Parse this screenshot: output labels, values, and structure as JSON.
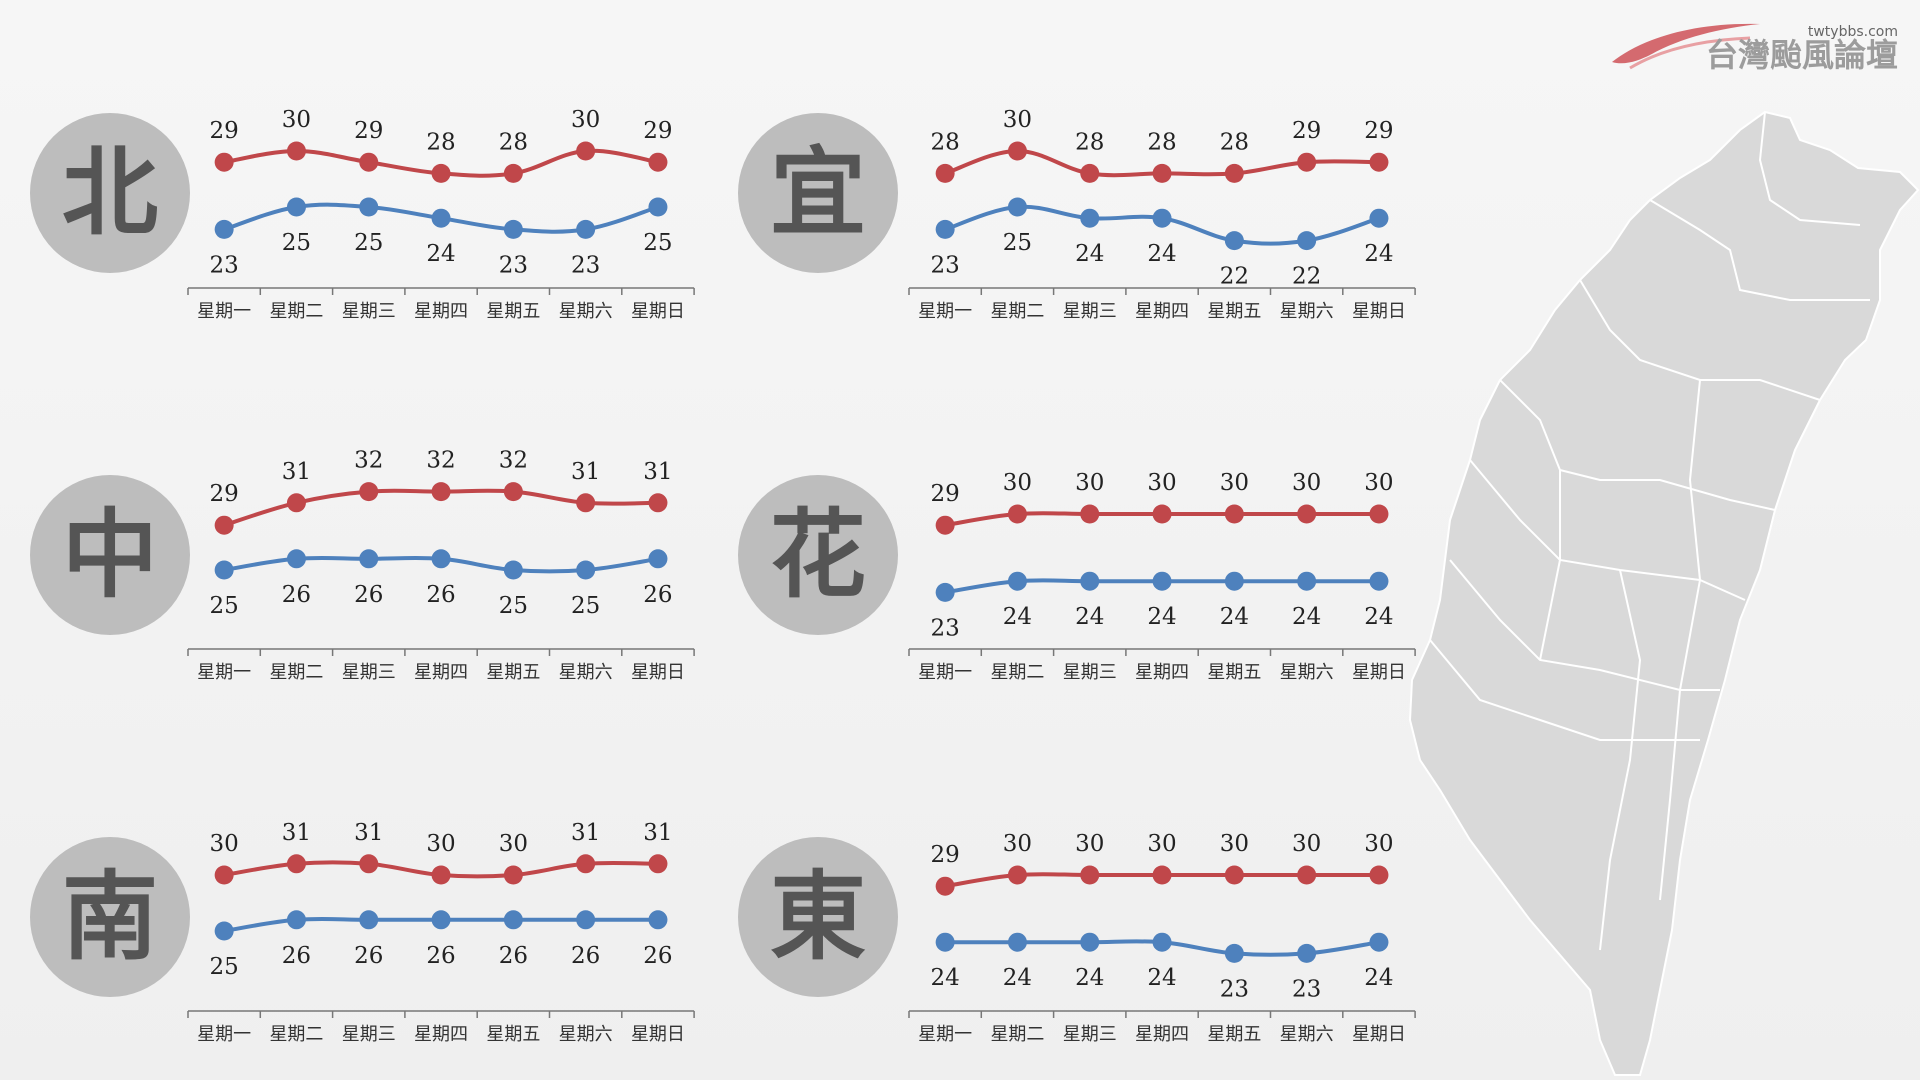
{
  "logo": {
    "site": "twtybbs.com",
    "name": "台灣颱風論壇"
  },
  "colors": {
    "high": "#c0474a",
    "low": "#4e81bd",
    "circle": "#bdbdbd",
    "char": "#555555",
    "map": "#d9d9d9"
  },
  "chart_data": [
    {
      "type": "line",
      "region": "北",
      "categories": [
        "星期一",
        "星期二",
        "星期三",
        "星期四",
        "星期五",
        "星期六",
        "星期日"
      ],
      "series": [
        {
          "values": [
            29,
            30,
            29,
            28,
            28,
            30,
            29
          ]
        },
        {
          "values": [
            23,
            25,
            25,
            24,
            23,
            23,
            25
          ]
        }
      ]
    },
    {
      "type": "line",
      "region": "宜",
      "categories": [
        "星期一",
        "星期二",
        "星期三",
        "星期四",
        "星期五",
        "星期六",
        "星期日"
      ],
      "series": [
        {
          "values": [
            28,
            30,
            28,
            28,
            28,
            29,
            29
          ]
        },
        {
          "values": [
            23,
            25,
            24,
            24,
            22,
            22,
            24
          ]
        }
      ]
    },
    {
      "type": "line",
      "region": "中",
      "categories": [
        "星期一",
        "星期二",
        "星期三",
        "星期四",
        "星期五",
        "星期六",
        "星期日"
      ],
      "series": [
        {
          "values": [
            29,
            31,
            32,
            32,
            32,
            31,
            31
          ]
        },
        {
          "values": [
            25,
            26,
            26,
            26,
            25,
            25,
            26
          ]
        }
      ]
    },
    {
      "type": "line",
      "region": "花",
      "categories": [
        "星期一",
        "星期二",
        "星期三",
        "星期四",
        "星期五",
        "星期六",
        "星期日"
      ],
      "series": [
        {
          "values": [
            29,
            30,
            30,
            30,
            30,
            30,
            30
          ]
        },
        {
          "values": [
            23,
            24,
            24,
            24,
            24,
            24,
            24
          ]
        }
      ]
    },
    {
      "type": "line",
      "region": "南",
      "categories": [
        "星期一",
        "星期二",
        "星期三",
        "星期四",
        "星期五",
        "星期六",
        "星期日"
      ],
      "series": [
        {
          "values": [
            30,
            31,
            31,
            30,
            30,
            31,
            31
          ]
        },
        {
          "values": [
            25,
            26,
            26,
            26,
            26,
            26,
            26
          ]
        }
      ]
    },
    {
      "type": "line",
      "region": "東",
      "categories": [
        "星期一",
        "星期二",
        "星期三",
        "星期四",
        "星期五",
        "星期六",
        "星期日"
      ],
      "series": [
        {
          "values": [
            29,
            30,
            30,
            30,
            30,
            30,
            30
          ]
        },
        {
          "values": [
            24,
            24,
            24,
            24,
            23,
            23,
            24
          ]
        }
      ]
    }
  ]
}
